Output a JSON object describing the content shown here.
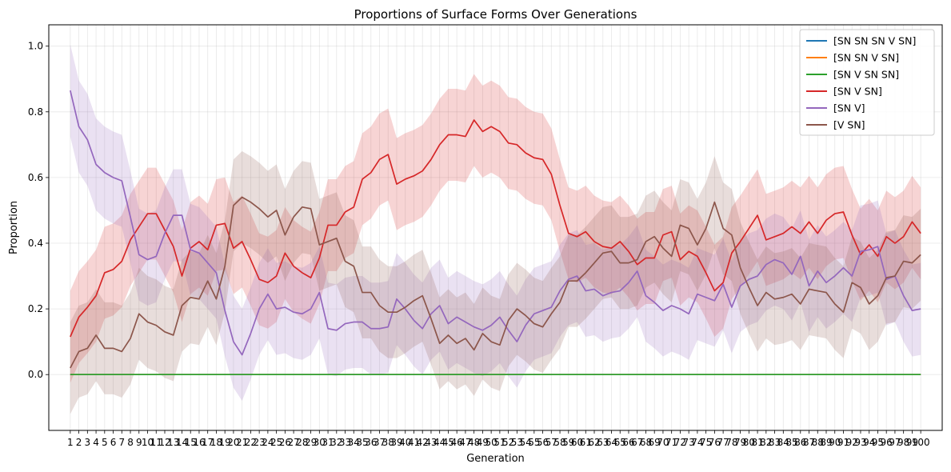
{
  "chart_data": {
    "type": "line",
    "title": "Proportions of Surface Forms Over Generations",
    "xlabel": "Generation",
    "ylabel": "Proportion",
    "xlim": [
      -1.5,
      102.5
    ],
    "ylim": [
      -0.17,
      1.065
    ],
    "y_ticks": [
      "0.0",
      "0.2",
      "0.4",
      "0.6",
      "0.8",
      "1.0"
    ],
    "grid": true,
    "legend_position": "top-right",
    "x": [
      1,
      2,
      3,
      4,
      5,
      6,
      7,
      8,
      9,
      10,
      11,
      12,
      13,
      14,
      15,
      16,
      17,
      18,
      19,
      20,
      21,
      22,
      23,
      24,
      25,
      26,
      27,
      28,
      29,
      30,
      31,
      32,
      33,
      34,
      35,
      36,
      37,
      38,
      39,
      40,
      41,
      42,
      43,
      44,
      45,
      46,
      47,
      48,
      49,
      50,
      51,
      52,
      53,
      54,
      55,
      56,
      57,
      58,
      59,
      60,
      61,
      62,
      63,
      64,
      65,
      66,
      67,
      68,
      69,
      70,
      71,
      72,
      73,
      74,
      75,
      76,
      77,
      78,
      79,
      80,
      81,
      82,
      83,
      84,
      85,
      86,
      87,
      88,
      89,
      90,
      91,
      92,
      93,
      94,
      95,
      96,
      97,
      98,
      99,
      100
    ],
    "x_tick_labels": [
      "1",
      "2",
      "3",
      "4",
      "5",
      "6",
      "7",
      "8",
      "9",
      "10",
      "11",
      "12",
      "13",
      "14",
      "15",
      "16",
      "17",
      "18",
      "19",
      "20",
      "21",
      "22",
      "23",
      "24",
      "25",
      "26",
      "27",
      "28",
      "29",
      "30",
      "31",
      "32",
      "33",
      "34",
      "35",
      "36",
      "37",
      "38",
      "39",
      "40",
      "41",
      "42",
      "43",
      "44",
      "45",
      "46",
      "47",
      "48",
      "49",
      "50",
      "51",
      "52",
      "53",
      "54",
      "55",
      "56",
      "57",
      "58",
      "59",
      "60",
      "61",
      "62",
      "63",
      "64",
      "65",
      "66",
      "67",
      "68",
      "69",
      "70",
      "71",
      "72",
      "73",
      "74",
      "75",
      "76",
      "77",
      "78",
      "79",
      "80",
      "81",
      "82",
      "83",
      "84",
      "85",
      "86",
      "87",
      "88",
      "89",
      "90",
      "91",
      "92",
      "93",
      "94",
      "95",
      "96",
      "97",
      "98",
      "99",
      "100"
    ],
    "series": [
      {
        "name": "[SN SN SN V SN]",
        "color": "#1f77b4",
        "values": [
          0,
          0,
          0,
          0,
          0,
          0,
          0,
          0,
          0,
          0,
          0,
          0,
          0,
          0,
          0,
          0,
          0,
          0,
          0,
          0,
          0,
          0,
          0,
          0,
          0,
          0,
          0,
          0,
          0,
          0,
          0,
          0,
          0,
          0,
          0,
          0,
          0,
          0,
          0,
          0,
          0,
          0,
          0,
          0,
          0,
          0,
          0,
          0,
          0,
          0,
          0,
          0,
          0,
          0,
          0,
          0,
          0,
          0,
          0,
          0,
          0,
          0,
          0,
          0,
          0,
          0,
          0,
          0,
          0,
          0,
          0,
          0,
          0,
          0,
          0,
          0,
          0,
          0,
          0,
          0,
          0,
          0,
          0,
          0,
          0,
          0,
          0,
          0,
          0,
          0,
          0,
          0,
          0,
          0,
          0,
          0,
          0,
          0,
          0,
          0
        ],
        "band": 0
      },
      {
        "name": "[SN SN V SN]",
        "color": "#ff7f0e",
        "values": [
          0,
          0,
          0,
          0,
          0,
          0,
          0,
          0,
          0,
          0,
          0,
          0,
          0,
          0,
          0,
          0,
          0,
          0,
          0,
          0,
          0,
          0,
          0,
          0,
          0,
          0,
          0,
          0,
          0,
          0,
          0,
          0,
          0,
          0,
          0,
          0,
          0,
          0,
          0,
          0,
          0,
          0,
          0,
          0,
          0,
          0,
          0,
          0,
          0,
          0,
          0,
          0,
          0,
          0,
          0,
          0,
          0,
          0,
          0,
          0,
          0,
          0,
          0,
          0,
          0,
          0,
          0,
          0,
          0,
          0,
          0,
          0,
          0,
          0,
          0,
          0,
          0,
          0,
          0,
          0,
          0,
          0,
          0,
          0,
          0,
          0,
          0,
          0,
          0,
          0,
          0,
          0,
          0,
          0,
          0,
          0,
          0,
          0,
          0,
          0
        ],
        "band": 0
      },
      {
        "name": "[SN V SN SN]",
        "color": "#2ca02c",
        "values": [
          0,
          0,
          0,
          0,
          0,
          0,
          0,
          0,
          0,
          0,
          0,
          0,
          0,
          0,
          0,
          0,
          0,
          0,
          0,
          0,
          0,
          0,
          0,
          0,
          0,
          0,
          0,
          0,
          0,
          0,
          0,
          0,
          0,
          0,
          0,
          0,
          0,
          0,
          0,
          0,
          0,
          0,
          0,
          0,
          0,
          0,
          0,
          0,
          0,
          0,
          0,
          0,
          0,
          0,
          0,
          0,
          0,
          0,
          0,
          0,
          0,
          0,
          0,
          0,
          0,
          0,
          0,
          0,
          0,
          0,
          0,
          0,
          0,
          0,
          0,
          0,
          0,
          0,
          0,
          0,
          0,
          0,
          0,
          0,
          0,
          0,
          0,
          0,
          0,
          0,
          0,
          0,
          0,
          0,
          0,
          0,
          0,
          0,
          0,
          0
        ],
        "band": 0
      },
      {
        "name": "[SN V SN]",
        "color": "#d62728",
        "values": [
          0.115,
          0.175,
          0.205,
          0.24,
          0.31,
          0.32,
          0.345,
          0.41,
          0.45,
          0.49,
          0.49,
          0.44,
          0.39,
          0.3,
          0.385,
          0.405,
          0.38,
          0.455,
          0.46,
          0.385,
          0.405,
          0.35,
          0.29,
          0.28,
          0.3,
          0.37,
          0.33,
          0.31,
          0.295,
          0.355,
          0.455,
          0.455,
          0.495,
          0.51,
          0.595,
          0.615,
          0.655,
          0.67,
          0.58,
          0.595,
          0.605,
          0.62,
          0.655,
          0.7,
          0.73,
          0.73,
          0.725,
          0.775,
          0.74,
          0.755,
          0.74,
          0.705,
          0.7,
          0.675,
          0.66,
          0.655,
          0.61,
          0.515,
          0.43,
          0.42,
          0.435,
          0.405,
          0.39,
          0.385,
          0.405,
          0.375,
          0.335,
          0.355,
          0.355,
          0.425,
          0.435,
          0.35,
          0.375,
          0.36,
          0.31,
          0.255,
          0.28,
          0.37,
          0.405,
          0.445,
          0.485,
          0.41,
          0.42,
          0.43,
          0.45,
          0.43,
          0.465,
          0.43,
          0.47,
          0.49,
          0.495,
          0.425,
          0.365,
          0.395,
          0.36,
          0.42,
          0.4,
          0.42,
          0.465,
          0.43
        ],
        "band": 0.14
      },
      {
        "name": "[SN V]",
        "color": "#9467bd",
        "values": [
          0.865,
          0.755,
          0.715,
          0.64,
          0.615,
          0.6,
          0.59,
          0.48,
          0.365,
          0.35,
          0.36,
          0.43,
          0.485,
          0.485,
          0.38,
          0.37,
          0.34,
          0.31,
          0.195,
          0.1,
          0.06,
          0.125,
          0.2,
          0.245,
          0.2,
          0.205,
          0.19,
          0.185,
          0.2,
          0.25,
          0.14,
          0.135,
          0.155,
          0.16,
          0.16,
          0.14,
          0.14,
          0.145,
          0.23,
          0.2,
          0.165,
          0.14,
          0.185,
          0.21,
          0.155,
          0.175,
          0.16,
          0.145,
          0.135,
          0.15,
          0.175,
          0.135,
          0.1,
          0.15,
          0.185,
          0.195,
          0.205,
          0.255,
          0.29,
          0.3,
          0.255,
          0.26,
          0.24,
          0.25,
          0.255,
          0.28,
          0.315,
          0.24,
          0.22,
          0.195,
          0.21,
          0.2,
          0.185,
          0.245,
          0.235,
          0.225,
          0.275,
          0.205,
          0.27,
          0.29,
          0.3,
          0.335,
          0.35,
          0.34,
          0.305,
          0.36,
          0.27,
          0.315,
          0.28,
          0.3,
          0.325,
          0.3,
          0.375,
          0.38,
          0.39,
          0.29,
          0.3,
          0.24,
          0.195,
          0.2
        ],
        "band": 0.14
      },
      {
        "name": "[V SN]",
        "color": "#8c564b",
        "values": [
          0.02,
          0.07,
          0.08,
          0.12,
          0.08,
          0.08,
          0.07,
          0.11,
          0.185,
          0.16,
          0.15,
          0.13,
          0.12,
          0.21,
          0.235,
          0.23,
          0.285,
          0.23,
          0.33,
          0.515,
          0.54,
          0.525,
          0.505,
          0.48,
          0.5,
          0.425,
          0.48,
          0.51,
          0.505,
          0.395,
          0.405,
          0.415,
          0.345,
          0.33,
          0.25,
          0.25,
          0.21,
          0.19,
          0.19,
          0.205,
          0.225,
          0.24,
          0.17,
          0.095,
          0.12,
          0.095,
          0.11,
          0.075,
          0.125,
          0.1,
          0.09,
          0.165,
          0.2,
          0.18,
          0.155,
          0.145,
          0.185,
          0.22,
          0.285,
          0.285,
          0.31,
          0.34,
          0.37,
          0.375,
          0.34,
          0.34,
          0.35,
          0.405,
          0.42,
          0.385,
          0.36,
          0.455,
          0.445,
          0.395,
          0.445,
          0.525,
          0.445,
          0.425,
          0.325,
          0.265,
          0.21,
          0.25,
          0.23,
          0.235,
          0.245,
          0.215,
          0.26,
          0.255,
          0.25,
          0.215,
          0.19,
          0.28,
          0.265,
          0.215,
          0.24,
          0.295,
          0.3,
          0.345,
          0.34,
          0.365
        ],
        "band": 0.14
      }
    ]
  }
}
